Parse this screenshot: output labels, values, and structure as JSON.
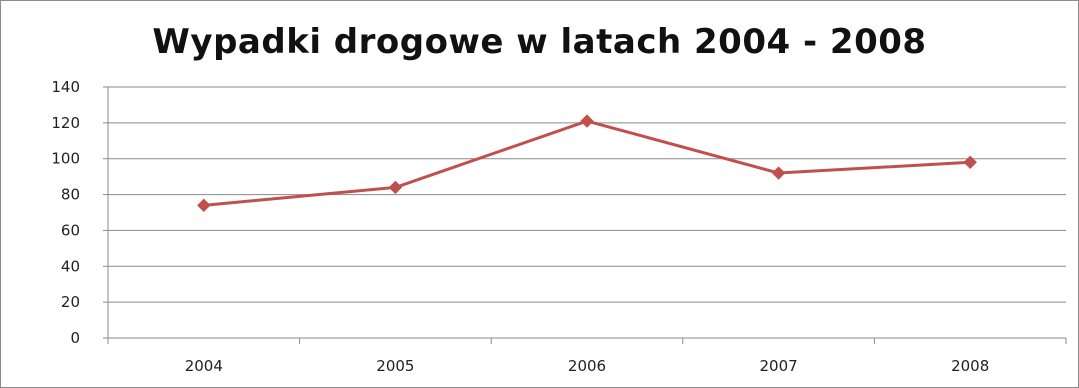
{
  "chart_data": {
    "type": "line",
    "title": "Wypadki drogowe w latach 2004 - 2008",
    "categories": [
      "2004",
      "2005",
      "2006",
      "2007",
      "2008"
    ],
    "series": [
      {
        "values": [
          74,
          84,
          121,
          92,
          98
        ]
      }
    ],
    "ylim": [
      0,
      140
    ],
    "yticks": [
      0,
      20,
      40,
      60,
      80,
      100,
      120,
      140
    ],
    "grid": true,
    "legend": "none",
    "line_color": "#c0504d"
  }
}
